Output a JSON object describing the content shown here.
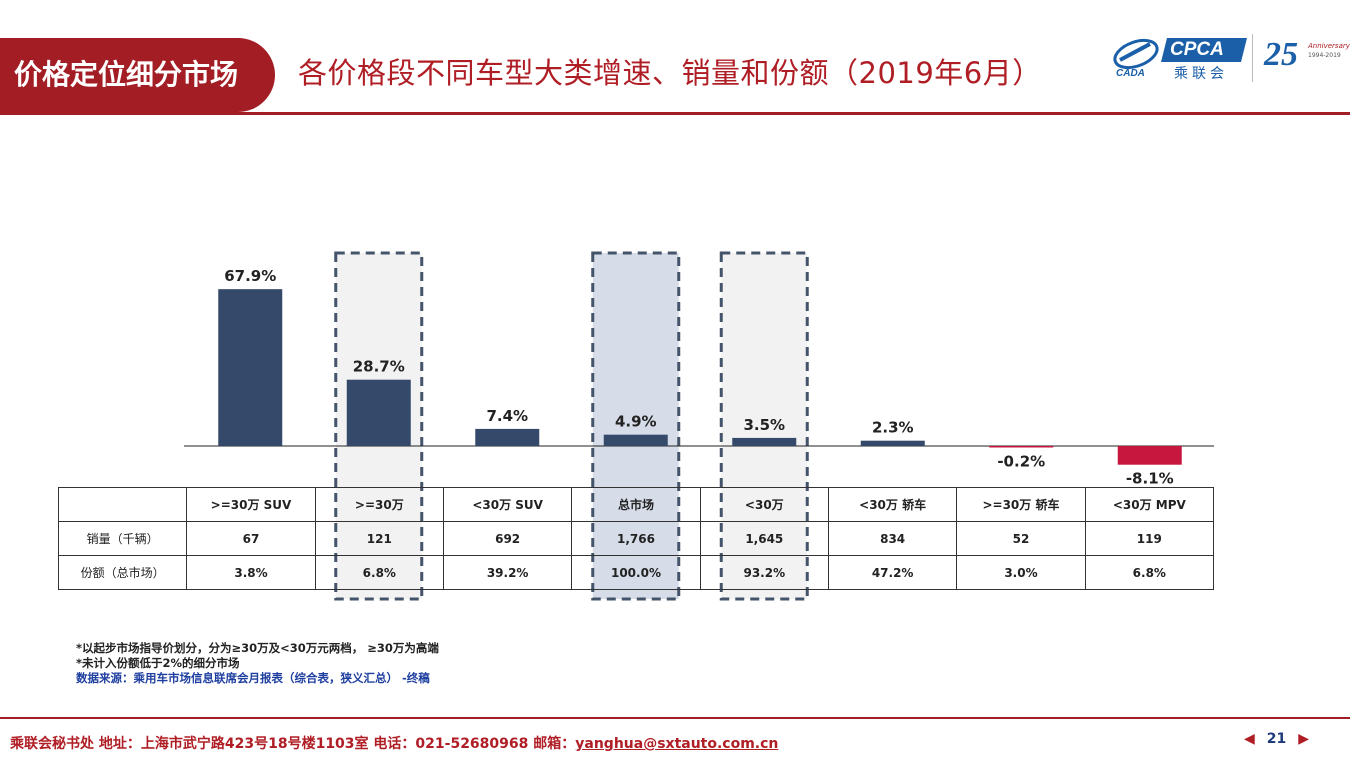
{
  "header": {
    "section_tag": "价格定位细分市场",
    "title": "各价格段不同车型大类增速、销量和份额（2019年6月）",
    "logo_cpca_text": "CPCA",
    "logo_cpca_sub": "乘联会",
    "logo_cada_text": "CADA",
    "logo_25_num": "25",
    "logo_25_anniversary": "Anniversary",
    "logo_25_years": "1994-2019"
  },
  "colors": {
    "brand_red": "#a31d24",
    "positive_bar": "#354a6b",
    "negative_bar": "#c8173f",
    "highlight_light": "#f2f2f2",
    "highlight_blue": "#d6dde8",
    "dash_border": "#44546a"
  },
  "chart_data": {
    "type": "bar",
    "categories": [
      ">=30万 SUV",
      ">=30万",
      "<30万 SUV",
      "总市场",
      "<30万",
      "<30万 轿车",
      ">=30万 轿车",
      "<30万 MPV"
    ],
    "values": [
      67.9,
      28.7,
      7.4,
      4.9,
      3.5,
      2.3,
      -0.2,
      -8.1
    ],
    "value_labels": [
      "67.9%",
      "28.7%",
      "7.4%",
      "4.9%",
      "3.5%",
      "2.3%",
      "-0.2%",
      "-8.1%"
    ],
    "title": "",
    "xlabel": "",
    "ylabel": "",
    "ylim": [
      -10,
      70
    ],
    "grid": false,
    "highlighted_categories": [
      ">=30万",
      "总市场",
      "<30万"
    ]
  },
  "table": {
    "headers": [
      ">=30万 SUV",
      ">=30万",
      "<30万 SUV",
      "总市场",
      "<30万",
      "<30万 轿车",
      ">=30万 轿车",
      "<30万 MPV"
    ],
    "rows": [
      {
        "label": "销量（千辆）",
        "values": [
          "67",
          "121",
          "692",
          "1,766",
          "1,645",
          "834",
          "52",
          "119"
        ]
      },
      {
        "label": "份额（总市场）",
        "values": [
          "3.8%",
          "6.8%",
          "39.2%",
          "100.0%",
          "93.2%",
          "47.2%",
          "3.0%",
          "6.8%"
        ]
      }
    ]
  },
  "notes": {
    "line1": "*以起步市场指导价划分，分为≥30万及<30万元两档， ≥30万为高端",
    "line2": "*未计入份额低于2%的细分市场",
    "source": "数据来源：乘用车市场信息联席会月报表（综合表，狭义汇总） -终稿"
  },
  "footer": {
    "org_address": "乘联会秘书处   地址：上海市武宁路423号18号楼1103室  电话：021-52680968   邮箱：",
    "email": "yanghua@sxtauto.com.cn",
    "page_number": "21"
  }
}
